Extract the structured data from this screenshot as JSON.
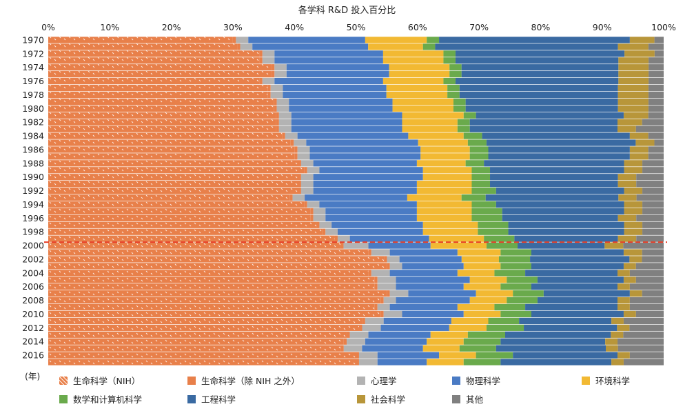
{
  "chart_data": {
    "type": "bar",
    "orientation": "horizontal",
    "stacked": "percent",
    "title": "各学科 R&D 投入百分比",
    "xlabel": "",
    "ylabel": "(年)",
    "xlim": [
      0,
      100
    ],
    "x_ticks": [
      "0%",
      "10%",
      "20%",
      "30%",
      "40%",
      "50%",
      "60%",
      "70%",
      "80%",
      "90%",
      "100%"
    ],
    "categories": [
      "1970",
      "1971",
      "1972",
      "1973",
      "1974",
      "1975",
      "1976",
      "1977",
      "1978",
      "1979",
      "1980",
      "1981",
      "1982",
      "1983",
      "1984",
      "1985",
      "1986",
      "1987",
      "1988",
      "1989",
      "1990",
      "1991",
      "1992",
      "1993",
      "1994",
      "1995",
      "1996",
      "1997",
      "1998",
      "1999",
      "2000",
      "2001",
      "2002",
      "2003",
      "2004",
      "2005",
      "2006",
      "2007",
      "2008",
      "2009",
      "2010",
      "2011",
      "2012",
      "2013",
      "2014",
      "2015",
      "2016",
      "2017"
    ],
    "category_tick_labels": [
      "1970",
      "",
      "1972",
      "",
      "1974",
      "",
      "1976",
      "",
      "1978",
      "",
      "1980",
      "",
      "1982",
      "",
      "1984",
      "",
      "1986",
      "",
      "1988",
      "",
      "1990",
      "",
      "1992",
      "",
      "1994",
      "",
      "1996",
      "",
      "1998",
      "",
      "2000",
      "",
      "2002",
      "",
      "2004",
      "",
      "2006",
      "",
      "2008",
      "",
      "2010",
      "",
      "2012",
      "",
      "2014",
      "",
      "2016",
      ""
    ],
    "annotation_line": {
      "category": "2000",
      "style": "dashed",
      "color": "#e8402a"
    },
    "legend_position": "bottom",
    "series": [
      {
        "name": "生命科学（NIH）",
        "color": "#e8804a",
        "pattern": "dotted",
        "values": [
          30,
          31,
          35,
          35,
          37,
          37,
          35,
          36,
          36,
          37,
          37,
          37,
          37,
          37,
          38,
          39,
          40,
          40,
          41,
          42,
          41,
          41,
          41,
          40,
          42,
          43,
          43,
          44,
          45,
          47,
          47,
          52,
          54,
          55,
          52,
          53,
          53,
          55,
          54,
          53,
          54,
          51,
          50,
          48,
          48,
          48,
          50,
          50
        ]
      },
      {
        "name": "生命科学（除 NIH 之外）",
        "color": "#e8804a",
        "values": [
          0.5,
          0.5,
          0.5,
          0.5,
          0.5,
          0.5,
          0.5,
          0.5,
          0.5,
          0.5,
          0.5,
          0.5,
          0.5,
          0.5,
          0.5,
          0.5,
          0.5,
          0.5,
          0.5,
          0.5,
          0.5,
          0.5,
          0.5,
          0.5,
          0.5,
          0.5,
          0.5,
          0.5,
          0.5,
          0.5,
          0.5,
          0.5,
          0.5,
          0.5,
          0.5,
          0.5,
          0.5,
          0.5,
          0.5,
          0.5,
          0.5,
          0.5,
          0.5,
          0.5,
          0.5,
          0.5,
          0.5,
          0.5
        ]
      },
      {
        "name": "心理学",
        "color": "#b3b3b3",
        "values": [
          2,
          2,
          2,
          2,
          2,
          2,
          2,
          2,
          2,
          2,
          2,
          2,
          2,
          2,
          2,
          2,
          2,
          2,
          2,
          2,
          2,
          2,
          2,
          2,
          2,
          2,
          2,
          2,
          2,
          2,
          4,
          3,
          2,
          2,
          3,
          3,
          3,
          3,
          2,
          2,
          3,
          3,
          3,
          3,
          3,
          3,
          3,
          3
        ]
      },
      {
        "name": "物理科学",
        "color": "#4a7bc4",
        "values": [
          19,
          19,
          18,
          18,
          17,
          17,
          18,
          17,
          17,
          17,
          17,
          18,
          18,
          18,
          18,
          18,
          18,
          18,
          17,
          17,
          18,
          17,
          17,
          17,
          16,
          15,
          15,
          15,
          14,
          13,
          10,
          11,
          10,
          10,
          11,
          12,
          11,
          11,
          12,
          11,
          10,
          11,
          11,
          10,
          10,
          10,
          10,
          8
        ]
      },
      {
        "name": "环境科学",
        "color": "#f2b933",
        "values": [
          10,
          9,
          10,
          10,
          10,
          10,
          10,
          10,
          10,
          10,
          10,
          10,
          9,
          9,
          9,
          8,
          8,
          8,
          8,
          8,
          8,
          9,
          9,
          9,
          9,
          9,
          9,
          9,
          9,
          9,
          9,
          7,
          6,
          6,
          6,
          6,
          6,
          6,
          6,
          6,
          6,
          6,
          6,
          6,
          6,
          6,
          6,
          6
        ]
      },
      {
        "name": "数学和计算机科学",
        "color": "#6aaa4c",
        "values": [
          2,
          2,
          2,
          2,
          2,
          2,
          2,
          2,
          2,
          2,
          2,
          2,
          2,
          2,
          3,
          3,
          3,
          3,
          3,
          3,
          3,
          3,
          4,
          4,
          4,
          5,
          5,
          5,
          5,
          5,
          5,
          5,
          5,
          5,
          5,
          5,
          5,
          5,
          5,
          5,
          5,
          5,
          6,
          6,
          6,
          6,
          6,
          6
        ]
      },
      {
        "name": "工程科学",
        "color": "#3a6aa2",
        "values": [
          31,
          30,
          28,
          27,
          26,
          26,
          27,
          26,
          26,
          25,
          25,
          24,
          24,
          24,
          24,
          24,
          23,
          23,
          23,
          22,
          21,
          21,
          21,
          22,
          21,
          20,
          19,
          19,
          19,
          17,
          14,
          15,
          16,
          15,
          15,
          14,
          14,
          14,
          13,
          15,
          15,
          15,
          15,
          17,
          17,
          18,
          17,
          18
        ]
      },
      {
        "name": "社会科学",
        "color": "#b8963a",
        "values": [
          4,
          5,
          5,
          5,
          5,
          5,
          5,
          5,
          5,
          5,
          5,
          4,
          4,
          3,
          3,
          3,
          3,
          3,
          3,
          3,
          3,
          3,
          3,
          3,
          3,
          3,
          3,
          3,
          3,
          3,
          3,
          3,
          2,
          2,
          2,
          2,
          2,
          2,
          2,
          2,
          2,
          2,
          2,
          2,
          2,
          2,
          2,
          2
        ]
      },
      {
        "name": "其他",
        "color": "#808080",
        "values": [
          1.5,
          2.5,
          1.5,
          2.5,
          2.5,
          2.5,
          2.5,
          2.5,
          2.5,
          2.5,
          2.5,
          2.5,
          3.5,
          4.5,
          2.5,
          1.5,
          2.5,
          2.5,
          3.5,
          3.5,
          4.5,
          4.5,
          3.5,
          4.5,
          3.5,
          3.5,
          4.5,
          3.5,
          3.5,
          4.5,
          6.5,
          3.5,
          3.5,
          4.5,
          5.5,
          4.5,
          5.5,
          3.5,
          5.5,
          5.5,
          4.5,
          6.5,
          5.5,
          6.5,
          7.5,
          7.5,
          5.5,
          6.5
        ]
      }
    ]
  }
}
